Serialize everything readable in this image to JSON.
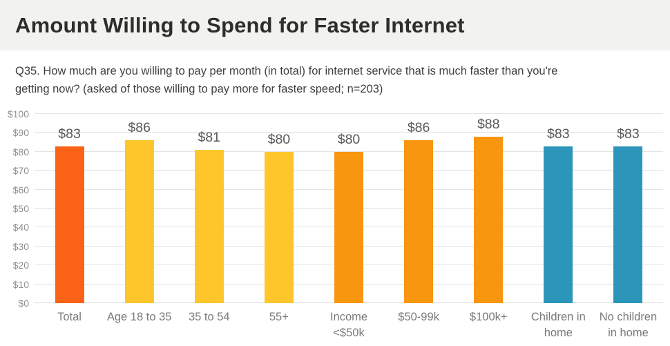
{
  "header": {
    "title": "Amount Willing to Spend for Faster Internet"
  },
  "subtitle": "Q35.  How much are you willing to pay per month (in total) for internet service that is much faster than you're\ngetting now? (asked of those willing to pay more for faster speed; n=203)",
  "colors": {
    "header_bg": "#F2F2EF",
    "title_text": "#2D2E2C",
    "subtitle_text": "#3E3F3E",
    "gridline": "#E3E3E3",
    "baseline": "#D9D9D9",
    "y_tick_text": "#8E8E8E",
    "category_text": "#7A7A7A",
    "value_text": "#58595B",
    "accent_total": "#FA6317",
    "accent_age": "#FEC62B",
    "accent_income": "#F8960F",
    "accent_children": "#2C96BA"
  },
  "chart_data": {
    "type": "bar",
    "title": "Amount Willing to Spend for Faster Internet",
    "xlabel": "",
    "ylabel": "",
    "categories": [
      "Total",
      "Age 18 to 35",
      "35 to 54",
      "55+",
      "Income\n<$50k",
      "$50-99k",
      "$100k+",
      "Children in\nhome",
      "No children\nin home"
    ],
    "values": [
      83,
      86,
      81,
      80,
      80,
      86,
      88,
      83,
      83
    ],
    "value_labels": [
      "$83",
      "$86",
      "$81",
      "$80",
      "$80",
      "$86",
      "$88",
      "$83",
      "$83"
    ],
    "bar_colors": [
      "#FA6317",
      "#FEC62B",
      "#FEC62B",
      "#FEC62B",
      "#F8960F",
      "#F8960F",
      "#F8960F",
      "#2C96BA",
      "#2C96BA"
    ],
    "ylim": [
      0,
      100
    ],
    "y_ticks": [
      0,
      10,
      20,
      30,
      40,
      50,
      60,
      70,
      80,
      90,
      100
    ],
    "y_tick_labels": [
      "$0",
      "$10",
      "$20",
      "$30",
      "$40",
      "$50",
      "$60",
      "$70",
      "$80",
      "$90",
      "$100"
    ],
    "grid": true,
    "legend": false
  }
}
